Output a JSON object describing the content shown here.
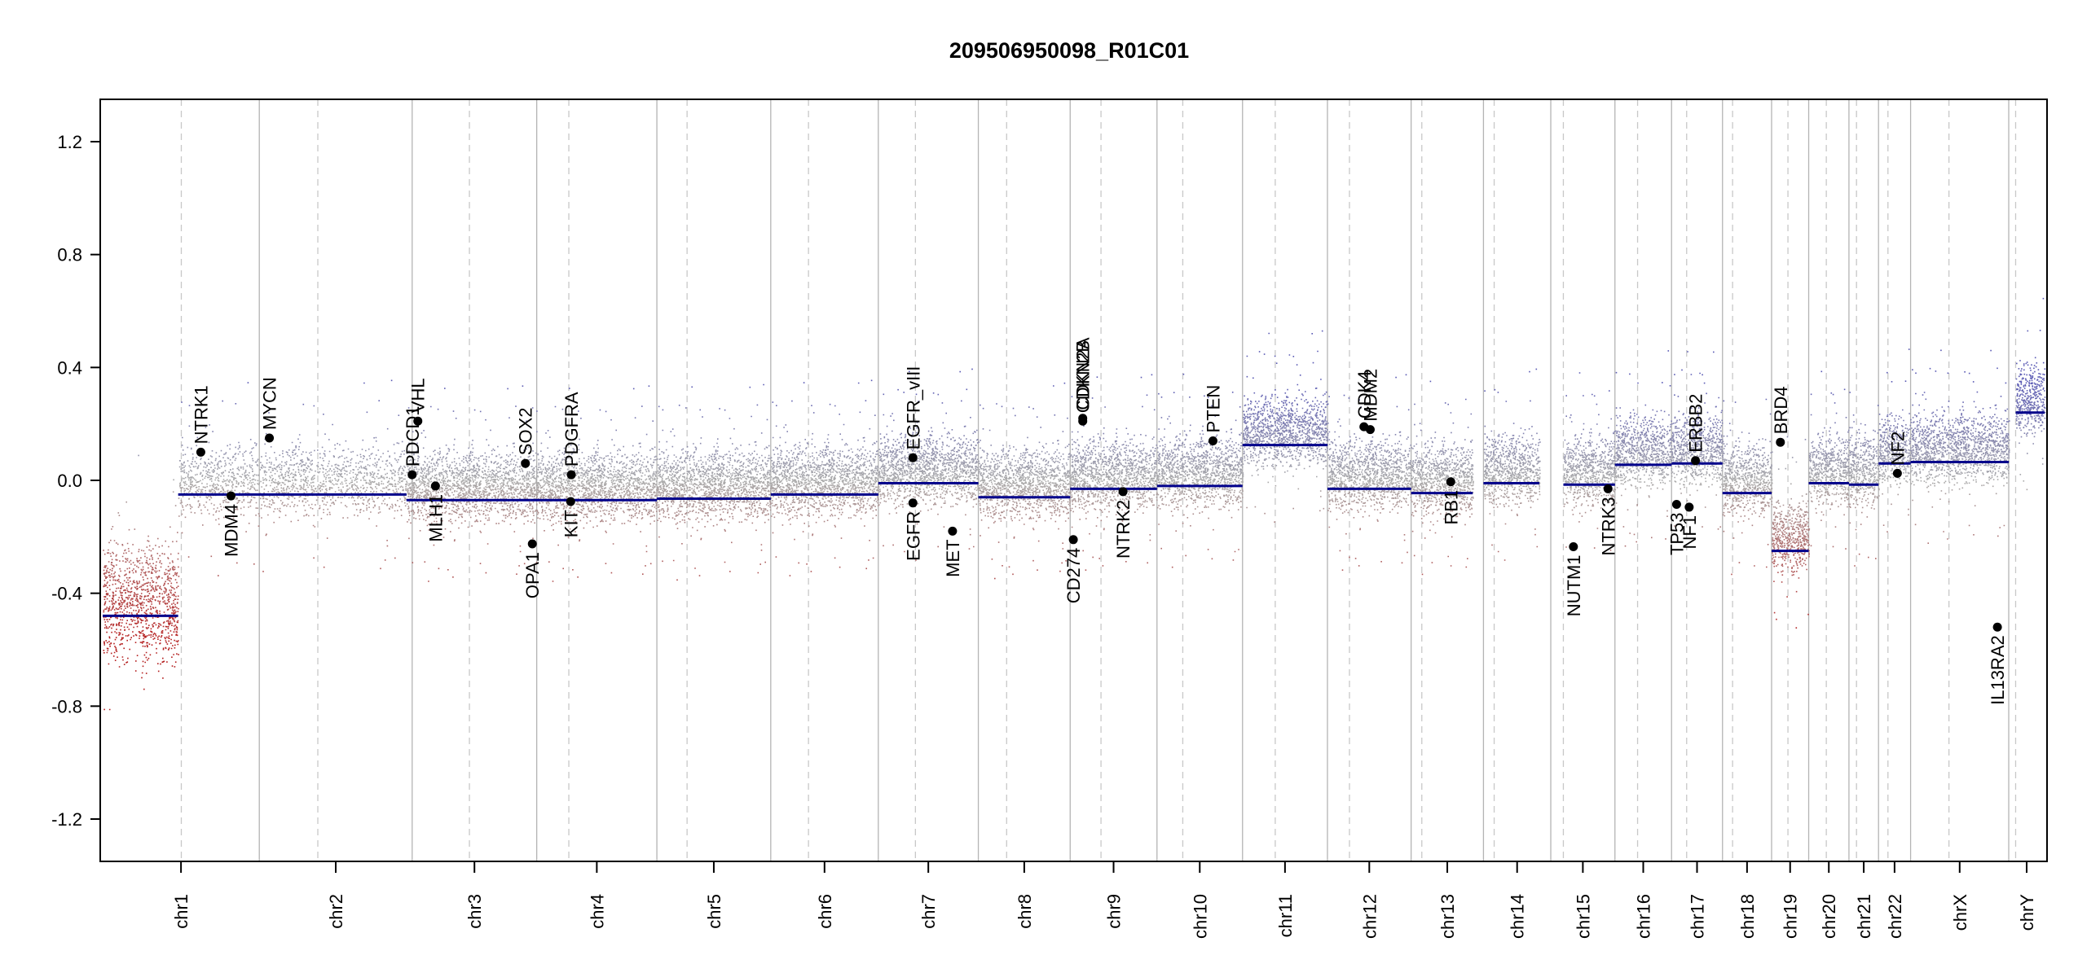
{
  "chart_data": {
    "type": "scatter",
    "title": "209506950098_R01C01",
    "xlabel": "",
    "ylabel": "",
    "ylim": [
      -1.35,
      1.35
    ],
    "yticks": [
      1.2,
      0.8,
      0.4,
      0.0,
      -0.4,
      -0.8,
      -1.2
    ],
    "ytick_labels": [
      "1.2",
      "0.8",
      "0.4",
      "0.0",
      "-0.4",
      "-0.8",
      "-1.2"
    ],
    "grid": false,
    "colors": {
      "segment": "#00008b",
      "gain": "#5a5ab4",
      "loss": "#b41e1e",
      "neutral": "#aaaaaa",
      "boundary": "#b4b4b4",
      "centromere": "#c8c8c8"
    },
    "chromosomes": [
      {
        "name": "chr1",
        "start": 0,
        "end": 249,
        "centromere": 125
      },
      {
        "name": "chr2",
        "start": 249,
        "end": 492,
        "centromere": 342
      },
      {
        "name": "chr3",
        "start": 492,
        "end": 690,
        "centromere": 583
      },
      {
        "name": "chr4",
        "start": 690,
        "end": 881,
        "centromere": 741
      },
      {
        "name": "chr5",
        "start": 881,
        "end": 1062,
        "centromere": 929
      },
      {
        "name": "chr6",
        "start": 1062,
        "end": 1233,
        "centromere": 1122
      },
      {
        "name": "chr7",
        "start": 1233,
        "end": 1392,
        "centromere": 1292
      },
      {
        "name": "chr8",
        "start": 1392,
        "end": 1538,
        "centromere": 1437
      },
      {
        "name": "chr9",
        "start": 1538,
        "end": 1676,
        "centromere": 1587
      },
      {
        "name": "chr10",
        "start": 1676,
        "end": 1812,
        "centromere": 1717
      },
      {
        "name": "chr11",
        "start": 1812,
        "end": 1947,
        "centromere": 1864
      },
      {
        "name": "chr12",
        "start": 1947,
        "end": 2080,
        "centromere": 1982
      },
      {
        "name": "chr13",
        "start": 2080,
        "end": 2195,
        "centromere": 2097
      },
      {
        "name": "chr14",
        "start": 2195,
        "end": 2302,
        "centromere": 2212
      },
      {
        "name": "chr15",
        "start": 2302,
        "end": 2404,
        "centromere": 2322
      },
      {
        "name": "chr16",
        "start": 2404,
        "end": 2494,
        "centromere": 2440
      },
      {
        "name": "chr17",
        "start": 2494,
        "end": 2575,
        "centromere": 2518
      },
      {
        "name": "chr18",
        "start": 2575,
        "end": 2653,
        "centromere": 2591
      },
      {
        "name": "chr19",
        "start": 2653,
        "end": 2712,
        "centromere": 2679
      },
      {
        "name": "chr20",
        "start": 2712,
        "end": 2776,
        "centromere": 2740
      },
      {
        "name": "chr21",
        "start": 2776,
        "end": 2823,
        "centromere": 2788
      },
      {
        "name": "chr22",
        "start": 2823,
        "end": 2874,
        "centromere": 2838
      },
      {
        "name": "chrX",
        "start": 2874,
        "end": 3030,
        "centromere": 2935
      },
      {
        "name": "chrY",
        "start": 3030,
        "end": 3087,
        "centromere": 3041
      }
    ],
    "segments": [
      {
        "start": 0,
        "end": 120,
        "value": -0.48
      },
      {
        "start": 120,
        "end": 483,
        "value": -0.05
      },
      {
        "start": 483,
        "end": 680,
        "value": -0.07
      },
      {
        "start": 680,
        "end": 881,
        "value": -0.07
      },
      {
        "start": 881,
        "end": 1062,
        "value": -0.065
      },
      {
        "start": 1062,
        "end": 1233,
        "value": -0.05
      },
      {
        "start": 1233,
        "end": 1392,
        "value": -0.01
      },
      {
        "start": 1392,
        "end": 1538,
        "value": -0.06
      },
      {
        "start": 1538,
        "end": 1676,
        "value": -0.03
      },
      {
        "start": 1676,
        "end": 1812,
        "value": -0.02
      },
      {
        "start": 1812,
        "end": 1947,
        "value": 0.125
      },
      {
        "start": 1947,
        "end": 2080,
        "value": -0.03
      },
      {
        "start": 2080,
        "end": 2178,
        "value": -0.045
      },
      {
        "start": 2195,
        "end": 2284,
        "value": -0.01
      },
      {
        "start": 2322,
        "end": 2404,
        "value": -0.015
      },
      {
        "start": 2404,
        "end": 2494,
        "value": 0.055
      },
      {
        "start": 2494,
        "end": 2575,
        "value": 0.06
      },
      {
        "start": 2575,
        "end": 2653,
        "value": -0.045
      },
      {
        "start": 2653,
        "end": 2679,
        "value": -0.25
      },
      {
        "start": 2679,
        "end": 2712,
        "value": -0.25
      },
      {
        "start": 2712,
        "end": 2776,
        "value": -0.01
      },
      {
        "start": 2776,
        "end": 2823,
        "value": -0.015
      },
      {
        "start": 2823,
        "end": 2874,
        "value": 0.06
      },
      {
        "start": 2874,
        "end": 3030,
        "value": 0.065
      },
      {
        "start": 3041,
        "end": 3087,
        "value": 0.24
      }
    ],
    "genes": [
      {
        "name": "NTRK1",
        "x": 156,
        "y": 0.1,
        "side": "above"
      },
      {
        "name": "MDM4",
        "x": 204,
        "y": -0.055,
        "side": "below"
      },
      {
        "name": "MYCN",
        "x": 265,
        "y": 0.15,
        "side": "above"
      },
      {
        "name": "PDCD1",
        "x": 492,
        "y": 0.02,
        "side": "above"
      },
      {
        "name": "VHL",
        "x": 501,
        "y": 0.21,
        "side": "above"
      },
      {
        "name": "MLH1",
        "x": 529,
        "y": -0.02,
        "side": "below"
      },
      {
        "name": "SOX2",
        "x": 672,
        "y": 0.06,
        "side": "above"
      },
      {
        "name": "OPA1",
        "x": 683,
        "y": -0.225,
        "side": "below"
      },
      {
        "name": "PDGFRA",
        "x": 745,
        "y": 0.02,
        "side": "above"
      },
      {
        "name": "KIT",
        "x": 744,
        "y": -0.075,
        "side": "below"
      },
      {
        "name": "EGFR_vIII",
        "x": 1288,
        "y": 0.08,
        "side": "above"
      },
      {
        "name": "EGFR",
        "x": 1288,
        "y": -0.08,
        "side": "below"
      },
      {
        "name": "MET",
        "x": 1351,
        "y": -0.18,
        "side": "below"
      },
      {
        "name": "CD274",
        "x": 1543,
        "y": -0.21,
        "side": "below"
      },
      {
        "name": "CDKN2A",
        "x": 1558,
        "y": 0.22,
        "side": "above"
      },
      {
        "name": "CDKN2B",
        "x": 1558,
        "y": 0.21,
        "side": "above"
      },
      {
        "name": "NTRK2",
        "x": 1622,
        "y": -0.04,
        "side": "below"
      },
      {
        "name": "PTEN",
        "x": 1765,
        "y": 0.14,
        "side": "above"
      },
      {
        "name": "CDK4",
        "x": 2005,
        "y": 0.19,
        "side": "above"
      },
      {
        "name": "MDM2",
        "x": 2015,
        "y": 0.18,
        "side": "above"
      },
      {
        "name": "RB1",
        "x": 2143,
        "y": -0.005,
        "side": "below"
      },
      {
        "name": "NUTM1",
        "x": 2338,
        "y": -0.235,
        "side": "below"
      },
      {
        "name": "NTRK3",
        "x": 2393,
        "y": -0.03,
        "side": "below"
      },
      {
        "name": "TP53",
        "x": 2502,
        "y": -0.085,
        "side": "below"
      },
      {
        "name": "NF1",
        "x": 2522,
        "y": -0.095,
        "side": "below"
      },
      {
        "name": "ERBB2",
        "x": 2532,
        "y": 0.07,
        "side": "above"
      },
      {
        "name": "BRD4",
        "x": 2667,
        "y": 0.135,
        "side": "above"
      },
      {
        "name": "NF2",
        "x": 2853,
        "y": 0.025,
        "side": "above"
      },
      {
        "name": "IL13RA2",
        "x": 3012,
        "y": -0.52,
        "side": "below"
      }
    ]
  }
}
